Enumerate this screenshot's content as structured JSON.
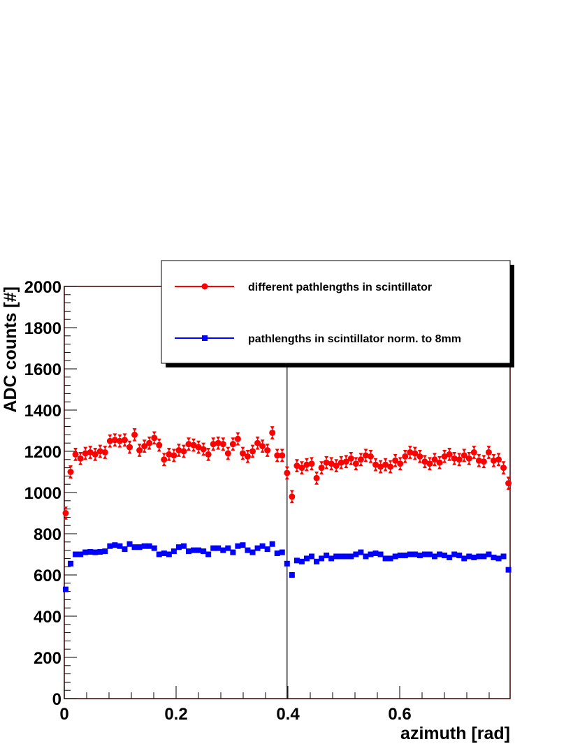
{
  "chart_data": {
    "type": "scatter",
    "xlabel": "azimuth [rad]",
    "ylabel": "ADC counts [#]",
    "xlim": [
      0,
      0.7975
    ],
    "ylim": [
      0,
      2000
    ],
    "xticks": [
      0,
      0.2,
      0.4,
      0.6
    ],
    "yticks": [
      0,
      200,
      400,
      600,
      800,
      1000,
      1200,
      1400,
      1600,
      1800,
      2000
    ],
    "vline": 0.3985,
    "x": [
      0.0025,
      0.0113,
      0.0201,
      0.0289,
      0.0377,
      0.0465,
      0.0553,
      0.0641,
      0.0729,
      0.0817,
      0.0905,
      0.0993,
      0.1081,
      0.1169,
      0.1257,
      0.1345,
      0.1433,
      0.1521,
      0.1609,
      0.1697,
      0.1785,
      0.1873,
      0.1961,
      0.2049,
      0.2137,
      0.2225,
      0.2313,
      0.2401,
      0.2489,
      0.2577,
      0.2665,
      0.2753,
      0.2841,
      0.2929,
      0.3017,
      0.3105,
      0.3193,
      0.3281,
      0.3369,
      0.3457,
      0.3545,
      0.3633,
      0.3721,
      0.3809,
      0.3897,
      0.3985,
      0.4073,
      0.4161,
      0.4249,
      0.4337,
      0.4425,
      0.4513,
      0.4601,
      0.4689,
      0.4777,
      0.4865,
      0.4953,
      0.5041,
      0.5129,
      0.5217,
      0.5305,
      0.5393,
      0.5481,
      0.5569,
      0.5657,
      0.5745,
      0.5833,
      0.5921,
      0.6009,
      0.6097,
      0.6185,
      0.6273,
      0.6361,
      0.6449,
      0.6537,
      0.6625,
      0.6713,
      0.6801,
      0.6889,
      0.6977,
      0.7065,
      0.7153,
      0.7241,
      0.7329,
      0.7417,
      0.7505,
      0.7593,
      0.7681,
      0.7769,
      0.7857,
      0.7945
    ],
    "series": [
      {
        "name": "different pathlengths in scintillator",
        "color": "#ff0000",
        "marker": "circle",
        "error": 25,
        "values": [
          900,
          1100,
          1185,
          1165,
          1190,
          1195,
          1185,
          1200,
          1195,
          1250,
          1255,
          1250,
          1255,
          1220,
          1280,
          1205,
          1225,
          1240,
          1265,
          1230,
          1160,
          1185,
          1180,
          1205,
          1200,
          1235,
          1230,
          1220,
          1210,
          1185,
          1235,
          1240,
          1235,
          1190,
          1235,
          1260,
          1190,
          1175,
          1200,
          1240,
          1225,
          1205,
          1290,
          1180,
          1180,
          1095,
          980,
          1130,
          1120,
          1135,
          1140,
          1070,
          1120,
          1145,
          1140,
          1130,
          1145,
          1150,
          1165,
          1140,
          1160,
          1180,
          1175,
          1135,
          1125,
          1135,
          1125,
          1155,
          1140,
          1175,
          1195,
          1190,
          1175,
          1150,
          1140,
          1160,
          1145,
          1175,
          1185,
          1165,
          1160,
          1180,
          1165,
          1195,
          1155,
          1150,
          1195,
          1155,
          1160,
          1120,
          1045
        ]
      },
      {
        "name": "pathlengths in scintillator norm. to 8mm",
        "color": "#0000ff",
        "marker": "square",
        "values": [
          530,
          655,
          700,
          700,
          710,
          712,
          710,
          712,
          715,
          740,
          745,
          740,
          725,
          750,
          735,
          735,
          740,
          740,
          730,
          700,
          705,
          700,
          715,
          735,
          740,
          715,
          720,
          720,
          715,
          700,
          730,
          730,
          720,
          730,
          710,
          740,
          745,
          720,
          710,
          730,
          740,
          725,
          750,
          705,
          710,
          655,
          600,
          670,
          665,
          680,
          690,
          665,
          680,
          695,
          680,
          690,
          690,
          690,
          690,
          700,
          710,
          690,
          700,
          705,
          700,
          680,
          680,
          690,
          695,
          695,
          700,
          700,
          695,
          700,
          700,
          690,
          700,
          695,
          685,
          700,
          695,
          680,
          690,
          685,
          690,
          690,
          700,
          685,
          680,
          690,
          625
        ]
      }
    ]
  }
}
